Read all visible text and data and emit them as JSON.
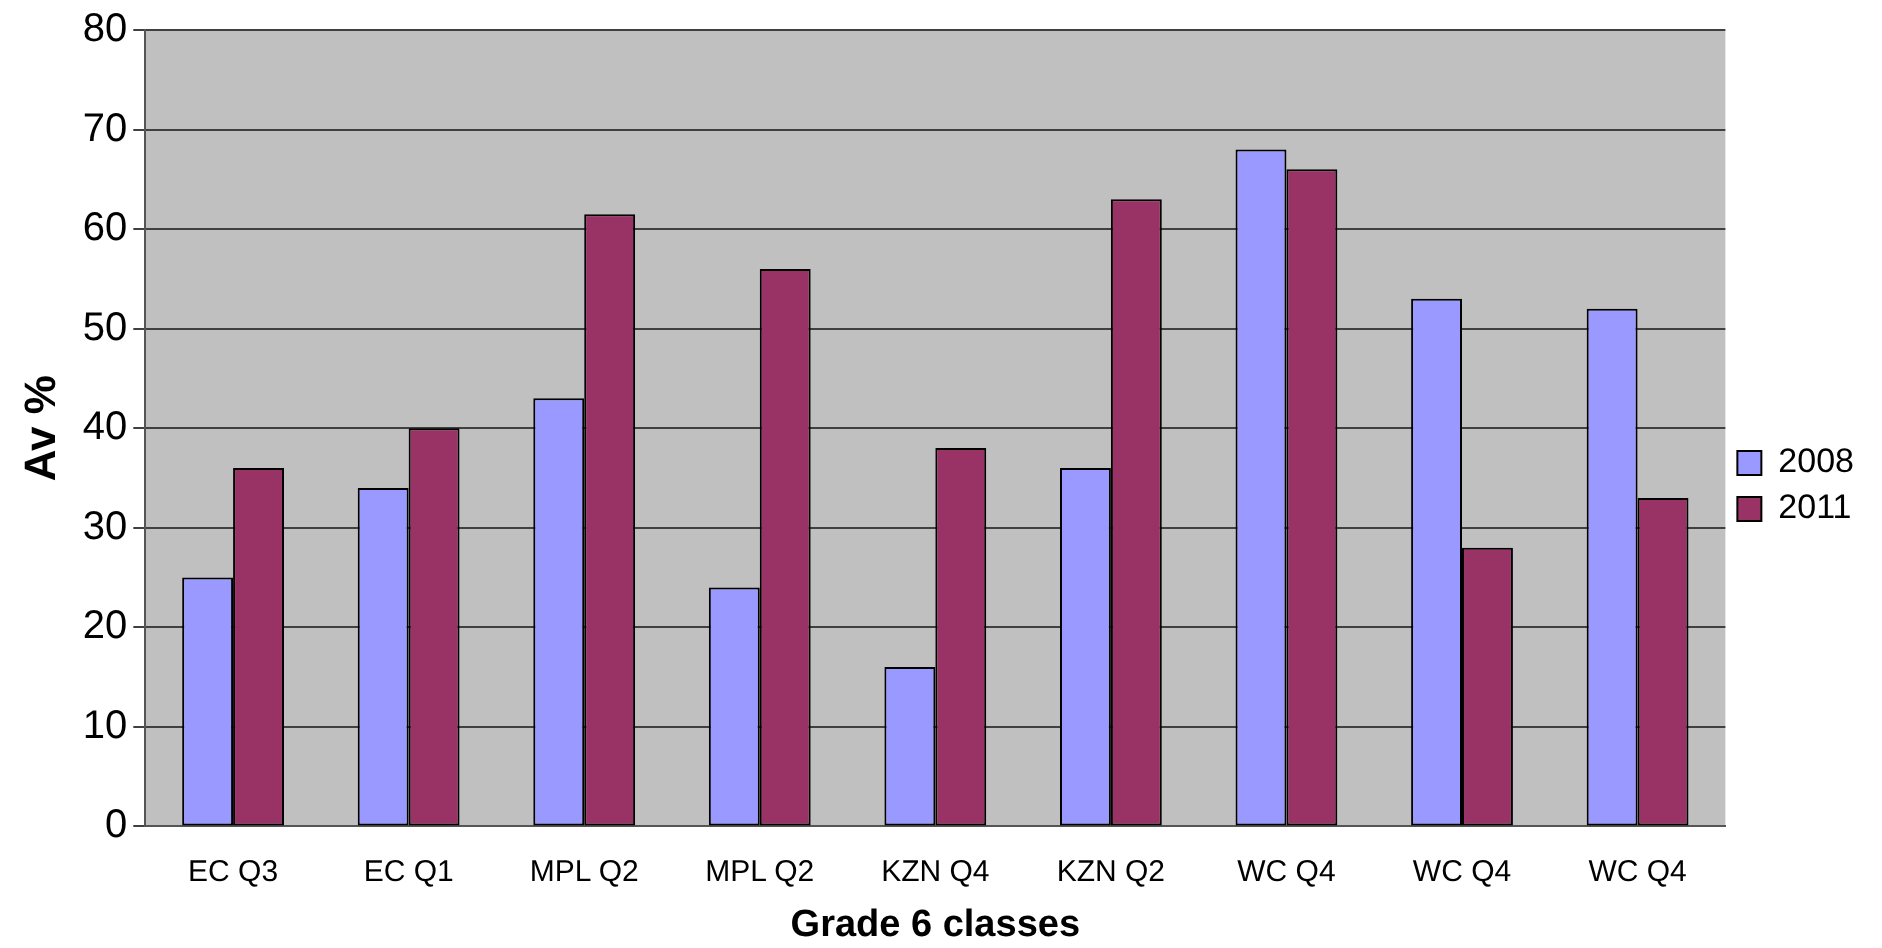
{
  "chart_data": {
    "type": "bar",
    "xlabel": "Grade 6 classes",
    "ylabel": "Av %",
    "categories": [
      "EC Q3",
      "EC Q1",
      "MPL Q2",
      "MPL Q2",
      "KZN Q4",
      "KZN Q2",
      "WC Q4",
      "WC Q4",
      "WC Q4"
    ],
    "series": [
      {
        "name": "2008",
        "color": "#9999ff",
        "values": [
          25,
          34,
          43,
          24,
          16,
          36,
          68,
          53,
          52
        ]
      },
      {
        "name": "2011",
        "color": "#993366",
        "values": [
          36,
          40,
          61.5,
          56,
          38,
          63,
          66,
          28,
          33
        ]
      }
    ],
    "ylim": [
      0,
      80
    ],
    "yticks": [
      0,
      10,
      20,
      30,
      40,
      50,
      60,
      70,
      80
    ],
    "grid": "y",
    "legend": "right"
  }
}
